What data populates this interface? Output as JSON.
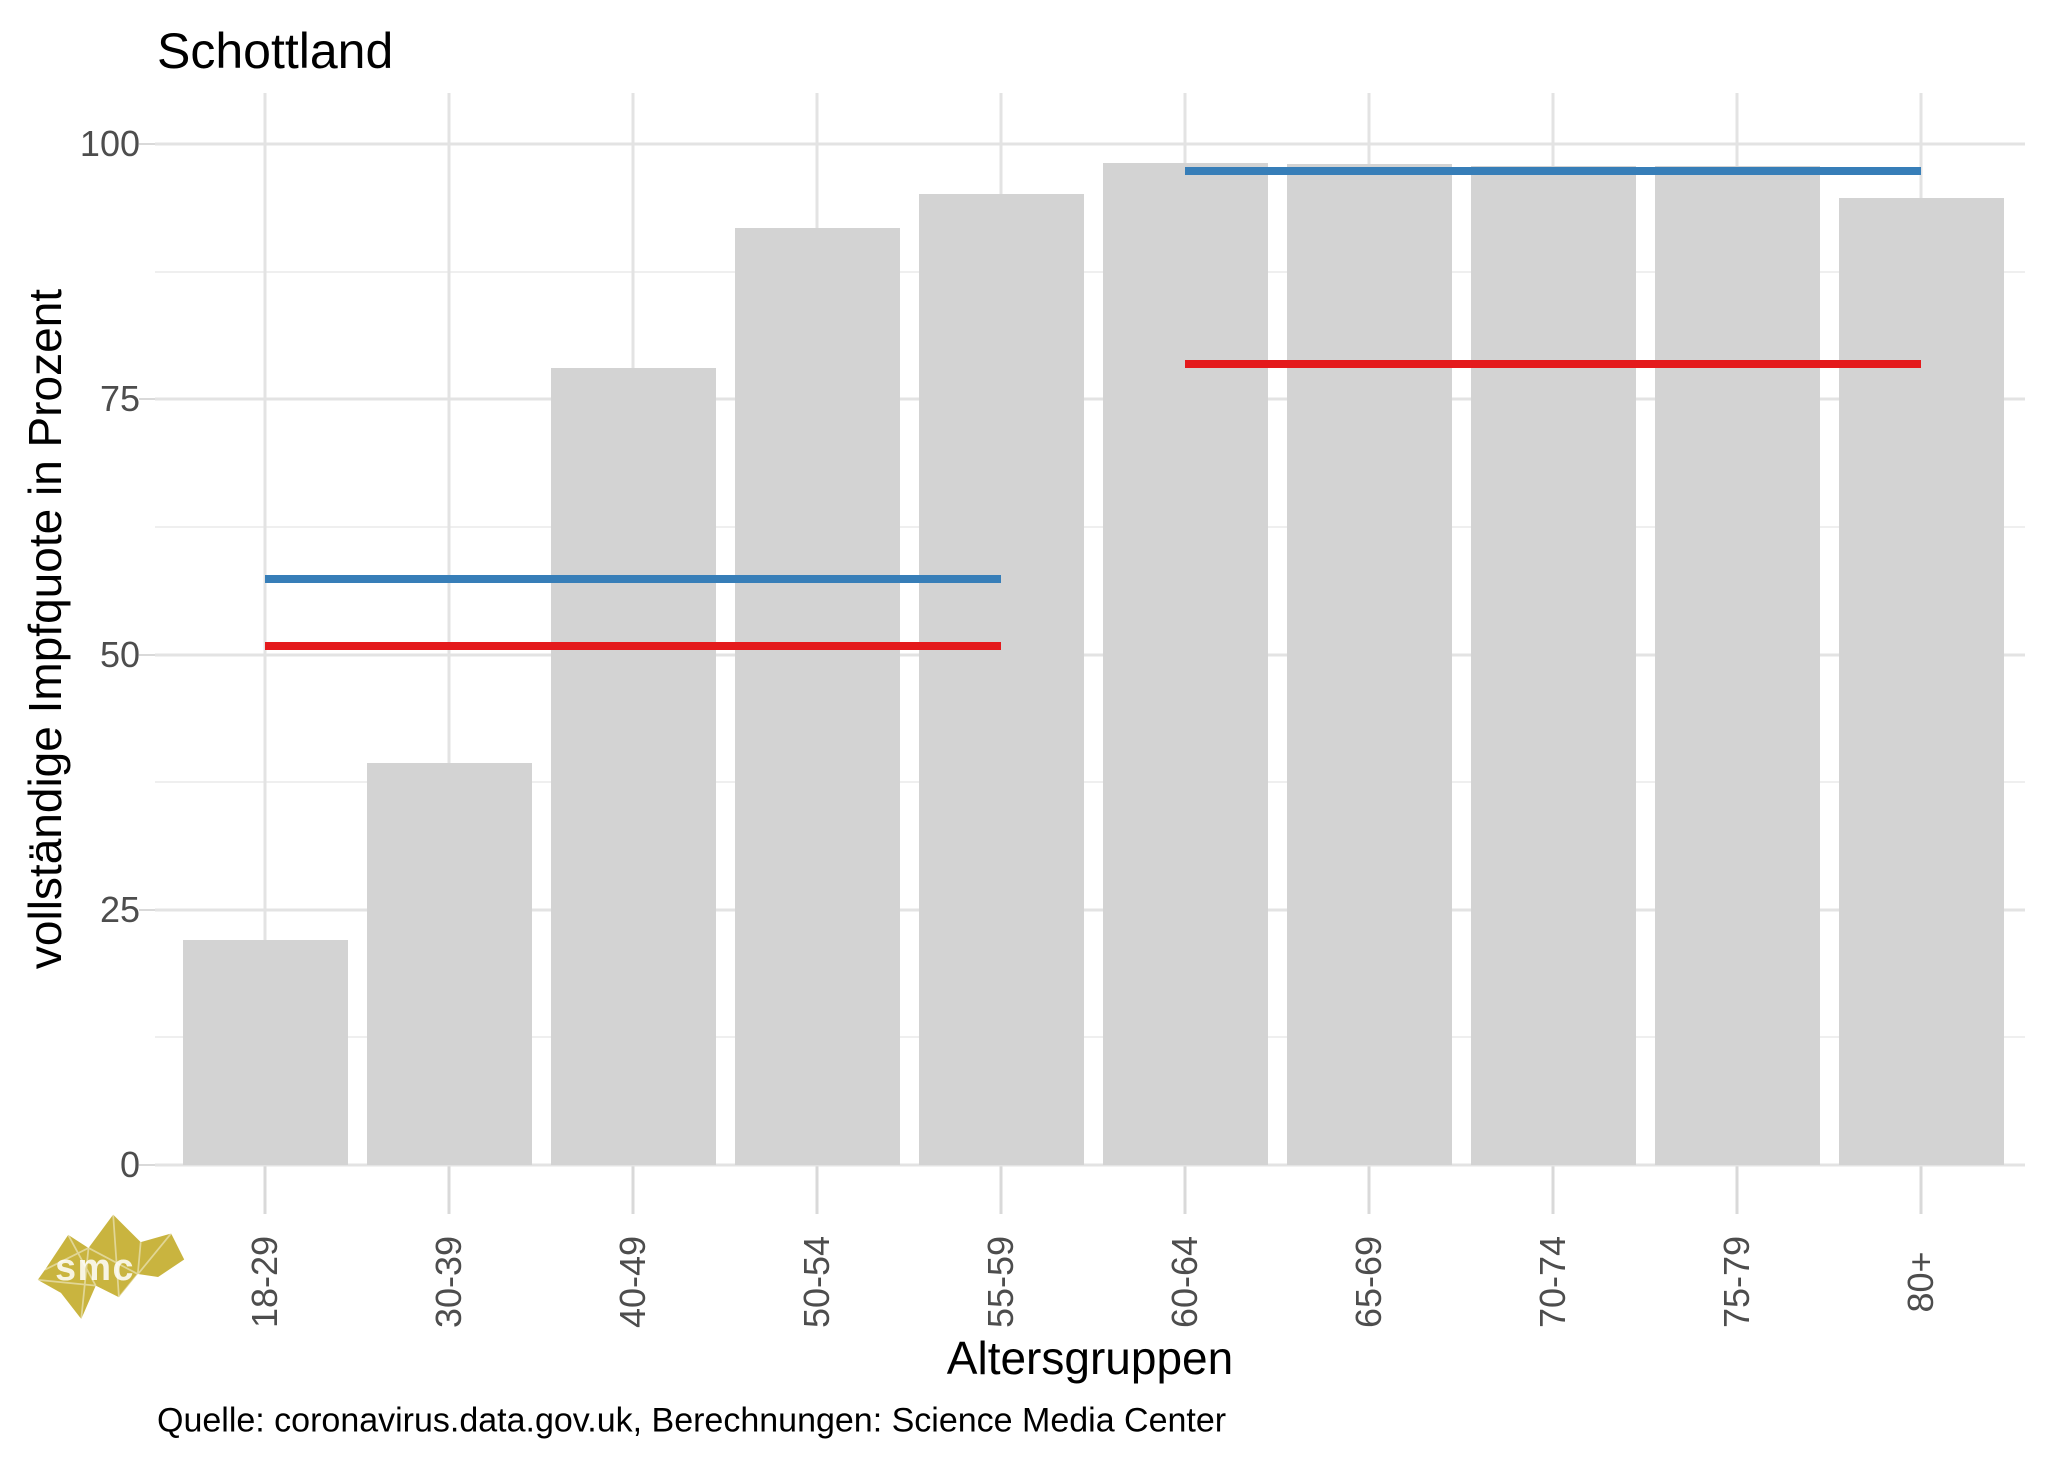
{
  "chart_data": {
    "type": "bar",
    "title": "Schottland",
    "xlabel": "Altersgruppen",
    "ylabel": "vollständige Impfquote in Prozent",
    "caption": "Quelle: coronavirus.data.gov.uk, Berechnungen: Science Media Center",
    "categories": [
      "18-29",
      "30-39",
      "40-49",
      "50-54",
      "55-59",
      "60-64",
      "65-69",
      "70-74",
      "75-79",
      "80+"
    ],
    "values": [
      22.0,
      39.4,
      78.1,
      91.8,
      95.1,
      98.1,
      98.0,
      97.9,
      97.9,
      94.7
    ],
    "ylim": [
      0,
      105
    ],
    "y_major_ticks": [
      0,
      25,
      50,
      75,
      100
    ],
    "y_minor_gridlines": [
      12.5,
      37.5,
      62.5,
      87.5
    ],
    "grid": "on",
    "legend": "none",
    "reference_lines": [
      {
        "name": "blue-line-18-59",
        "value": 57.4,
        "from": "18-29",
        "to": "55-59",
        "color": "#377EB8"
      },
      {
        "name": "red-line-18-59",
        "value": 50.8,
        "from": "18-29",
        "to": "55-59",
        "color": "#E41A1C"
      },
      {
        "name": "blue-line-60plus",
        "value": 97.4,
        "from": "60-64",
        "to": "80+",
        "color": "#377EB8"
      },
      {
        "name": "red-line-60plus",
        "value": 78.5,
        "from": "60-64",
        "to": "80+",
        "color": "#E41A1C"
      }
    ]
  },
  "colors": {
    "bar": "#D3D3D3",
    "blue": "#377EB8",
    "red": "#E41A1C",
    "grid_major": "#E3E3E3",
    "grid_minor": "#EFEFEF",
    "tick_mark": "#D9D9D9",
    "tick_text": "#4D4D4D",
    "text": "#000000",
    "logo_gold": "#C9B43F"
  },
  "logo": {
    "text": "smc"
  }
}
